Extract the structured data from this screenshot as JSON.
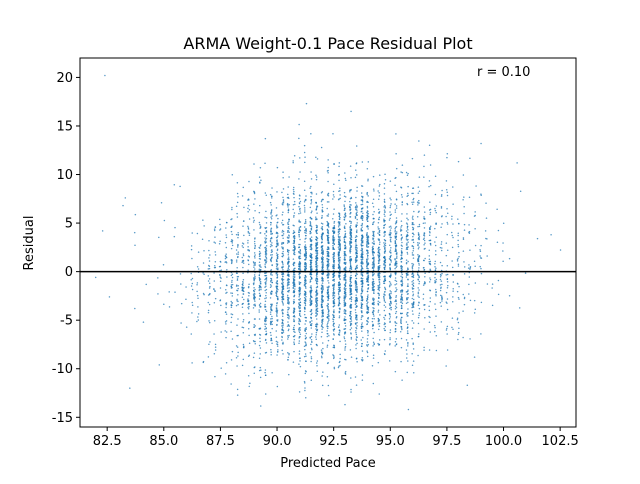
{
  "chart_data": {
    "type": "scatter",
    "title": "ARMA Weight-0.1 Pace Residual Plot",
    "xlabel": "Predicted Pace",
    "ylabel": "Residual",
    "xlim": [
      81.3,
      103.2
    ],
    "ylim": [
      -16.0,
      22.0
    ],
    "xticks": [
      82.5,
      85.0,
      87.5,
      90.0,
      92.5,
      95.0,
      97.5,
      100.0,
      102.5
    ],
    "yticks": [
      -15,
      -10,
      -5,
      0,
      5,
      10,
      15,
      20
    ],
    "annotation": "r = 0.10",
    "reference_line_y": 0,
    "grid": false,
    "point_color": "#1f77b4",
    "distribution": {
      "x_center": 92.5,
      "x_sd": 2.6,
      "y_center": 0,
      "y_sd": 4.3,
      "approx_point_count": 5200
    },
    "outliers": [
      {
        "x": 82.4,
        "y": 20.2
      },
      {
        "x": 82.3,
        "y": 4.2
      },
      {
        "x": 83.2,
        "y": 6.8
      },
      {
        "x": 83.3,
        "y": 7.6
      },
      {
        "x": 84.8,
        "y": -9.6
      },
      {
        "x": 84.9,
        "y": 7.1
      },
      {
        "x": 84.1,
        "y": -5.2
      },
      {
        "x": 82.6,
        "y": -2.6
      },
      {
        "x": 102.1,
        "y": 3.8
      },
      {
        "x": 101.5,
        "y": 3.4
      },
      {
        "x": 100.6,
        "y": 11.2
      },
      {
        "x": 98.4,
        "y": -11.7
      },
      {
        "x": 91.3,
        "y": 17.3
      },
      {
        "x": 95.8,
        "y": -14.2
      },
      {
        "x": 93.0,
        "y": -13.7
      },
      {
        "x": 88.8,
        "y": -11.5
      },
      {
        "x": 89.5,
        "y": -12.6
      }
    ]
  }
}
